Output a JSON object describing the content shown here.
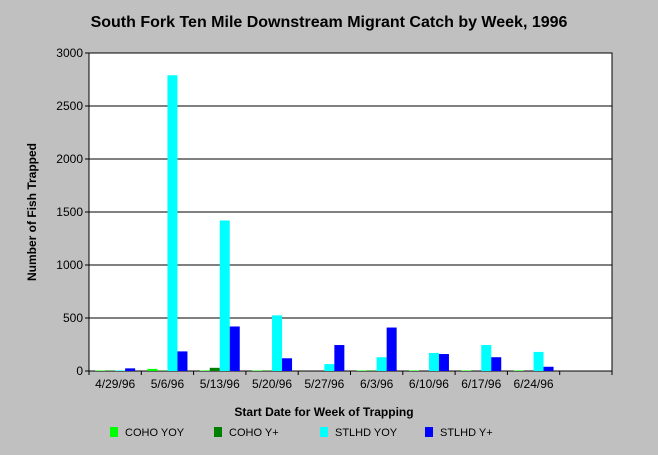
{
  "chart_data": {
    "type": "bar",
    "title": "South Fork Ten Mile Downstream Migrant Catch by Week, 1996",
    "xlabel": "Start Date for Week of Trapping",
    "ylabel": "Number of Fish Trapped",
    "categories": [
      "4/29/96",
      "5/6/96",
      "5/13/96",
      "5/20/96",
      "5/27/96",
      "6/3/96",
      "6/10/96",
      "6/17/96",
      "6/24/96"
    ],
    "ylim": [
      0,
      3000
    ],
    "yticks": [
      0,
      500,
      1000,
      1500,
      2000,
      2500,
      3000
    ],
    "grid": true,
    "legend_position": "bottom",
    "series": [
      {
        "name": "COHO YOY",
        "color": "#00ff00",
        "values": [
          5,
          20,
          5,
          5,
          0,
          5,
          5,
          5,
          5
        ]
      },
      {
        "name": "COHO Y+",
        "color": "#008000",
        "values": [
          5,
          5,
          30,
          5,
          0,
          5,
          0,
          0,
          0
        ]
      },
      {
        "name": "STLHD YOY",
        "color": "#00ffff",
        "values": [
          5,
          2790,
          1420,
          525,
          65,
          130,
          170,
          245,
          180
        ]
      },
      {
        "name": "STLHD Y+",
        "color": "#0000ff",
        "values": [
          25,
          185,
          420,
          120,
          245,
          410,
          160,
          130,
          40
        ]
      }
    ]
  }
}
